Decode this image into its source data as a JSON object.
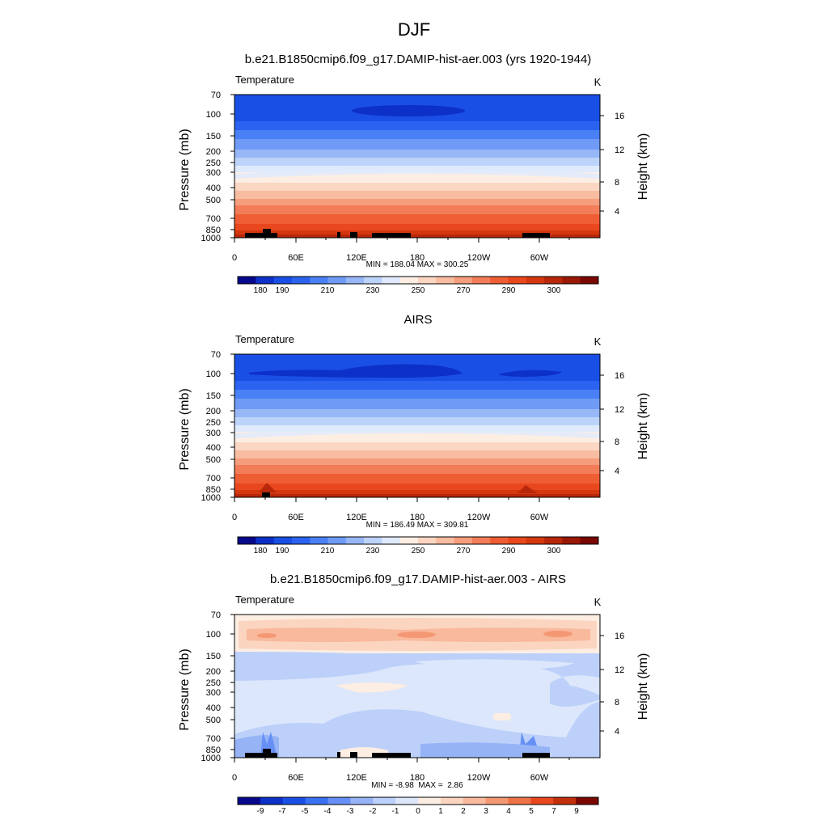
{
  "figure": {
    "title": "DJF"
  },
  "chart_data": [
    {
      "type": "heatmap",
      "title": "b.e21.B1850cmip6.f09_g17.DAMIP-hist-aer.003 (yrs 1920-1944)",
      "left_label": "Temperature",
      "units_label": "K",
      "ylabel": "Pressure (mb)",
      "y2label": "Height (km)",
      "x_ticks": [
        "0",
        "60E",
        "120E",
        "180",
        "120W",
        "60W"
      ],
      "y_ticks": [
        "70",
        "100",
        "150",
        "200",
        "250",
        "300",
        "400",
        "500",
        "700",
        "850",
        "1000"
      ],
      "y2_ticks": [
        "16",
        "12",
        "8",
        "4"
      ],
      "stats": "MIN = 188.04  MAX = 300.25",
      "colorbar_labels": [
        "180",
        "190",
        "210",
        "230",
        "250",
        "270",
        "290",
        "300"
      ],
      "value_min": 188.04,
      "value_max": 300.25
    },
    {
      "type": "heatmap",
      "title": "AIRS",
      "left_label": "Temperature",
      "units_label": "K",
      "ylabel": "Pressure (mb)",
      "y2label": "Height (km)",
      "x_ticks": [
        "0",
        "60E",
        "120E",
        "180",
        "120W",
        "60W"
      ],
      "y_ticks": [
        "70",
        "100",
        "150",
        "200",
        "250",
        "300",
        "400",
        "500",
        "700",
        "850",
        "1000"
      ],
      "y2_ticks": [
        "16",
        "12",
        "8",
        "4"
      ],
      "stats": "MIN = 186.49  MAX = 309.81",
      "colorbar_labels": [
        "180",
        "190",
        "210",
        "230",
        "250",
        "270",
        "290",
        "300"
      ],
      "value_min": 186.49,
      "value_max": 309.81
    },
    {
      "type": "heatmap",
      "title": "b.e21.B1850cmip6.f09_g17.DAMIP-hist-aer.003 - AIRS",
      "left_label": "Temperature",
      "units_label": "K",
      "ylabel": "Pressure (mb)",
      "y2label": "Height (km)",
      "x_ticks": [
        "0",
        "60E",
        "120E",
        "180",
        "120W",
        "60W"
      ],
      "y_ticks": [
        "70",
        "100",
        "150",
        "200",
        "250",
        "300",
        "400",
        "500",
        "700",
        "850",
        "1000"
      ],
      "y2_ticks": [
        "16",
        "12",
        "8",
        "4"
      ],
      "stats": "MIN = -8.98  MAX =  2.86",
      "colorbar_labels": [
        "-9",
        "-7",
        "-5",
        "-4",
        "-3",
        "-2",
        "-1",
        "0",
        "1",
        "2",
        "3",
        "4",
        "5",
        "7",
        "9"
      ],
      "value_min": -8.98,
      "value_max": 2.86
    }
  ],
  "colors": {
    "abs_scale": [
      "#08088c",
      "#0d30c8",
      "#1a4fe6",
      "#2b63f0",
      "#4a80f5",
      "#6f9bf6",
      "#98b7f7",
      "#bcd3fa",
      "#dfeafc",
      "#fdeee4",
      "#fbd6c3",
      "#f8bca1",
      "#f59d7c",
      "#f27d58",
      "#ef5d34",
      "#e9471d",
      "#d5370f",
      "#b8270a",
      "#9a1806",
      "#7a0702"
    ],
    "diff_scale": [
      "#08088c",
      "#0d30c8",
      "#1a4fe6",
      "#3a70f2",
      "#6690f5",
      "#96b3f6",
      "#bcd0fa",
      "#dce7fb",
      "#fdeee3",
      "#fbd5c0",
      "#f8b99c",
      "#f49873",
      "#ef7348",
      "#e9471d",
      "#c4300c",
      "#7a0702"
    ],
    "terrain": "#000000"
  }
}
